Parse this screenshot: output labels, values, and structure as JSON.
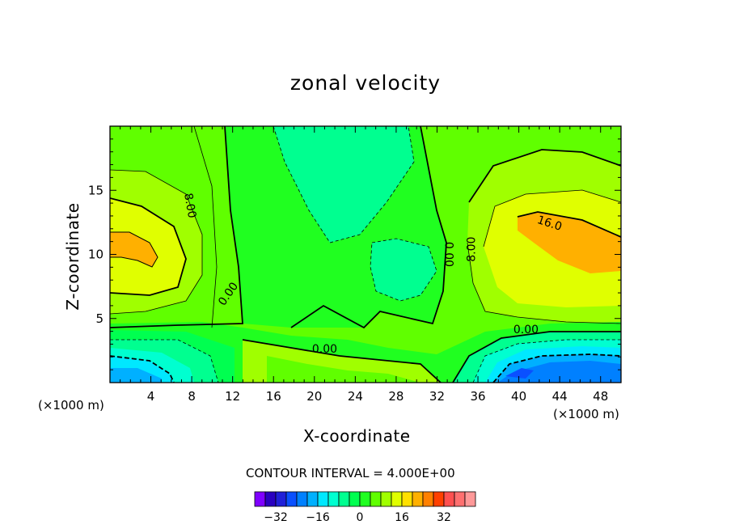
{
  "chart_data": {
    "type": "heatmap",
    "title": "zonal velocity",
    "xlabel": "X-coordinate",
    "ylabel": "Z-coordinate",
    "x_unit_label": "(×1000 m)",
    "xlim": [
      0,
      50
    ],
    "ylim": [
      0,
      20
    ],
    "x_ticks": [
      4,
      8,
      12,
      16,
      20,
      24,
      28,
      32,
      36,
      40,
      44,
      48
    ],
    "y_ticks": [
      5,
      10,
      15
    ],
    "contour_interval_text": "CONTOUR INTERVAL = 4.000E+00",
    "contour_labels": [
      {
        "text": "8.00",
        "x": 7.8,
        "y": 13.8,
        "rot": 80
      },
      {
        "text": "0.00",
        "x": 11.6,
        "y": 6.9,
        "rot": -55
      },
      {
        "text": "0.00",
        "x": 21.0,
        "y": 2.6,
        "rot": 0
      },
      {
        "text": "0.00",
        "x": 33.1,
        "y": 10.0,
        "rot": 90
      },
      {
        "text": "8.00",
        "x": 35.4,
        "y": 10.4,
        "rot": -90
      },
      {
        "text": "16.0",
        "x": 43.0,
        "y": 12.4,
        "rot": 18
      },
      {
        "text": "0.00",
        "x": 40.7,
        "y": 4.1,
        "rot": 0
      }
    ],
    "colorbar": {
      "colors": [
        "#7f00ff",
        "#2a00c0",
        "#2020d8",
        "#0a50ff",
        "#0080ff",
        "#00b0ff",
        "#00e8ff",
        "#00ffd0",
        "#00ff90",
        "#00ff50",
        "#20ff20",
        "#60ff00",
        "#a0ff00",
        "#e0ff00",
        "#ffe000",
        "#ffb000",
        "#ff8000",
        "#ff4000",
        "#ff5050",
        "#ff7070",
        "#ff9999"
      ],
      "tick_labels": [
        "-32",
        "-16",
        "0",
        "16",
        "32"
      ],
      "tick_values": [
        -32,
        -16,
        0,
        16,
        32
      ]
    }
  }
}
